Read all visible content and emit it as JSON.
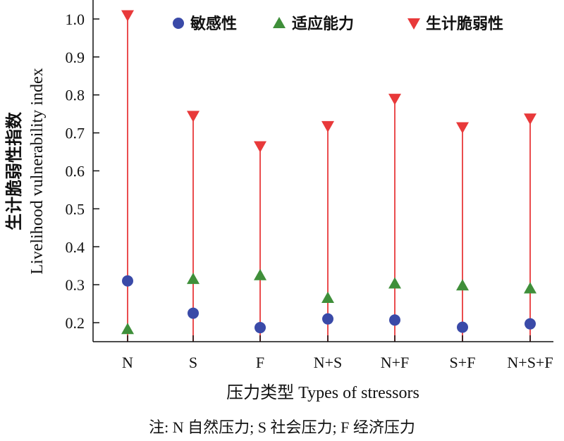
{
  "chart_data": {
    "type": "scatter",
    "categories": [
      "N",
      "S",
      "F",
      "N+S",
      "N+F",
      "S+F",
      "N+S+F"
    ],
    "series": [
      {
        "name": "敏感性",
        "color": "#3a4aa8",
        "marker": "circle",
        "values": [
          0.31,
          0.225,
          0.187,
          0.21,
          0.207,
          0.188,
          0.197
        ]
      },
      {
        "name": "适应能力",
        "color": "#3f8f3a",
        "marker": "triangle-up",
        "values": [
          0.183,
          0.315,
          0.325,
          0.265,
          0.303,
          0.298,
          0.29
        ]
      },
      {
        "name": "生计脆弱性",
        "color": "#e8393a",
        "marker": "triangle-down",
        "values": [
          1.01,
          0.745,
          0.665,
          0.718,
          0.79,
          0.715,
          0.738
        ]
      }
    ],
    "stem_color": "#e8393a",
    "xlabel": "压力类型 Types of stressors",
    "ylabel_cn": "生计脆弱性指数",
    "ylabel_en": "Livelihood vulnerability index",
    "ylim": [
      0.15,
      1.05
    ],
    "yticks": [
      "0.2",
      "0.3",
      "0.4",
      "0.5",
      "0.6",
      "0.7",
      "0.8",
      "0.9",
      "1.0"
    ],
    "legend_position": "top-right",
    "grid": false
  },
  "note": "注: N 自然压力; S 社会压力; F 经济压力"
}
